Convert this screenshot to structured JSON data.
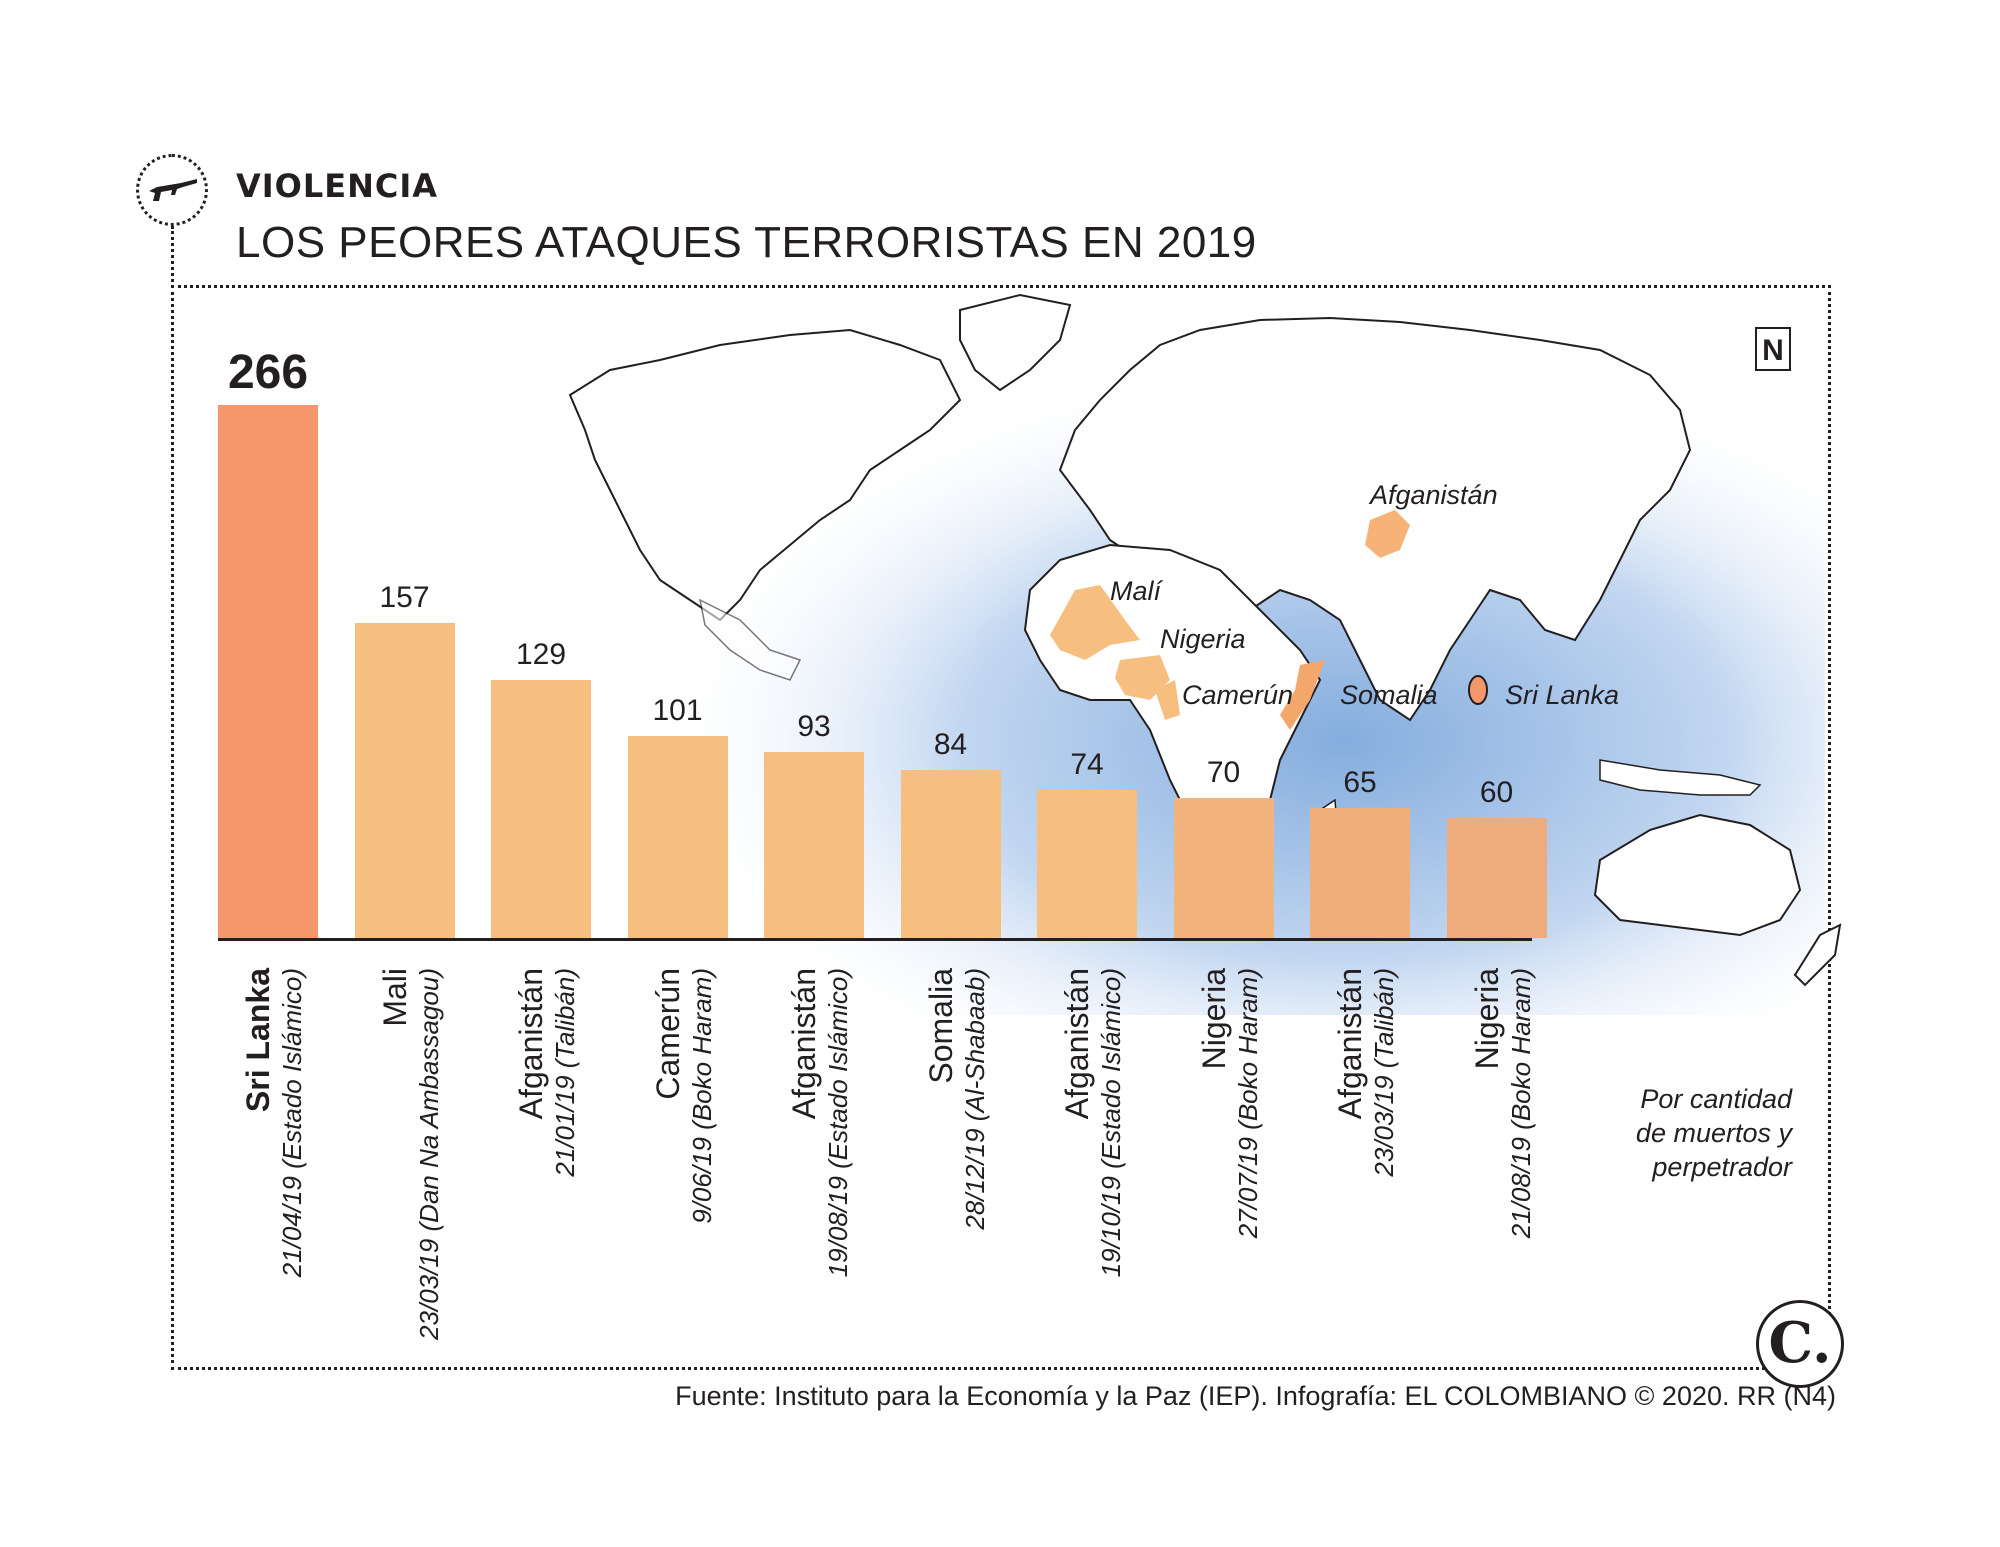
{
  "header": {
    "kicker": "VIOLENCIA",
    "title": "LOS PEORES ATAQUES TERRORISTAS EN 2019"
  },
  "chart_data": {
    "type": "bar",
    "title": "LOS PEORES ATAQUES TERRORISTAS EN 2019",
    "xlabel": "",
    "ylabel": "",
    "ylim": [
      0,
      266
    ],
    "categories": [
      "Sri Lanka",
      "Mali",
      "Afganistán",
      "Camerún",
      "Afganistán",
      "Somalia",
      "Afganistán",
      "Nigeria",
      "Afganistán",
      "Nigeria"
    ],
    "details": [
      "21/04/19 (Estado Islámico)",
      "23/03/19 (Dan Na Ambassagou)",
      "21/01/19 (Talibán)",
      "9/06/19 (Boko Haram)",
      "19/08/19 (Estado Islámico)",
      "28/12/19 (Al-Shabaab)",
      "19/10/19 (Estado Islámico)",
      "27/07/19 (Boko Haram)",
      "23/03/19 (Talibán)",
      "21/08/19 (Boko Haram)"
    ],
    "values": [
      266,
      157,
      129,
      101,
      93,
      84,
      74,
      70,
      65,
      60
    ],
    "colors": [
      "#f4976b",
      "#f7bf7f",
      "#f7bf7f",
      "#f7bf7f",
      "#f7bf7f",
      "#f7bf7f",
      "#f7bf7f",
      "#f2b47c",
      "#eeaf7c",
      "#eeac7d"
    ]
  },
  "map": {
    "labels": [
      "Afganistán",
      "Malí",
      "Nigeria",
      "Camerún",
      "Somalia",
      "Sri Lanka"
    ],
    "north": "N"
  },
  "note": [
    "Por cantidad",
    "de muertos y",
    "perpetrador"
  ],
  "source": "Fuente: Instituto para la Economía y la Paz (IEP). Infografía: EL COLOMBIANO © 2020. RR (N4)",
  "logo": "C."
}
